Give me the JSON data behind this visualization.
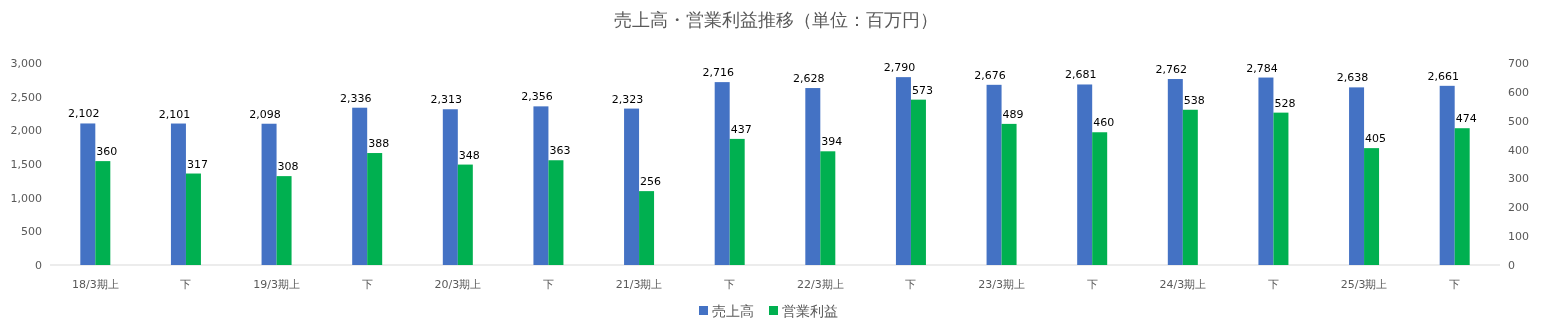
{
  "chart_data": {
    "type": "bar",
    "title": "売上高・営業利益推移（単位：百万円）",
    "categories": [
      "18/3期上",
      "下",
      "19/3期上",
      "下",
      "20/3期上",
      "下",
      "21/3期上",
      "下",
      "22/3期上",
      "下",
      "23/3期上",
      "下",
      "24/3期上",
      "下",
      "25/3期上",
      "下"
    ],
    "series": [
      {
        "name": "売上高",
        "color": "#4472c4",
        "values": [
          2102,
          2101,
          2098,
          2336,
          2313,
          2356,
          2323,
          2716,
          2628,
          2790,
          2676,
          2681,
          2762,
          2784,
          2638,
          2661
        ],
        "value_labels": [
          "2,102",
          "2,101",
          "2,098",
          "2,336",
          "2,313",
          "2,356",
          "2,323",
          "2,716",
          "2,628",
          "2,790",
          "2,676",
          "2,681",
          "2,762",
          "2,784",
          "2,638",
          "2,661"
        ]
      },
      {
        "name": "営業利益",
        "color": "#00b050",
        "axis": "y2",
        "values": [
          360,
          317,
          308,
          388,
          348,
          363,
          256,
          437,
          394,
          573,
          489,
          460,
          538,
          528,
          405,
          474
        ],
        "value_labels": [
          "360",
          "317",
          "308",
          "388",
          "348",
          "363",
          "256",
          "437",
          "394",
          "573",
          "489",
          "460",
          "538",
          "528",
          "405",
          "474"
        ]
      }
    ],
    "ylim": [
      0,
      3000
    ],
    "yticks": [
      0,
      500,
      {
        "value": 1000,
        "label": "1,000"
      },
      {
        "value": 1500,
        "label": "1,500"
      },
      {
        "value": 2000,
        "label": "2,000"
      },
      {
        "value": 2500,
        "label": "2,500"
      },
      {
        "value": 3000,
        "label": "3,000"
      }
    ],
    "y2lim": [
      0,
      700
    ],
    "y2ticks": [
      0,
      100,
      200,
      300,
      400,
      500,
      600,
      700
    ],
    "grid": false,
    "legend": "bottom"
  }
}
